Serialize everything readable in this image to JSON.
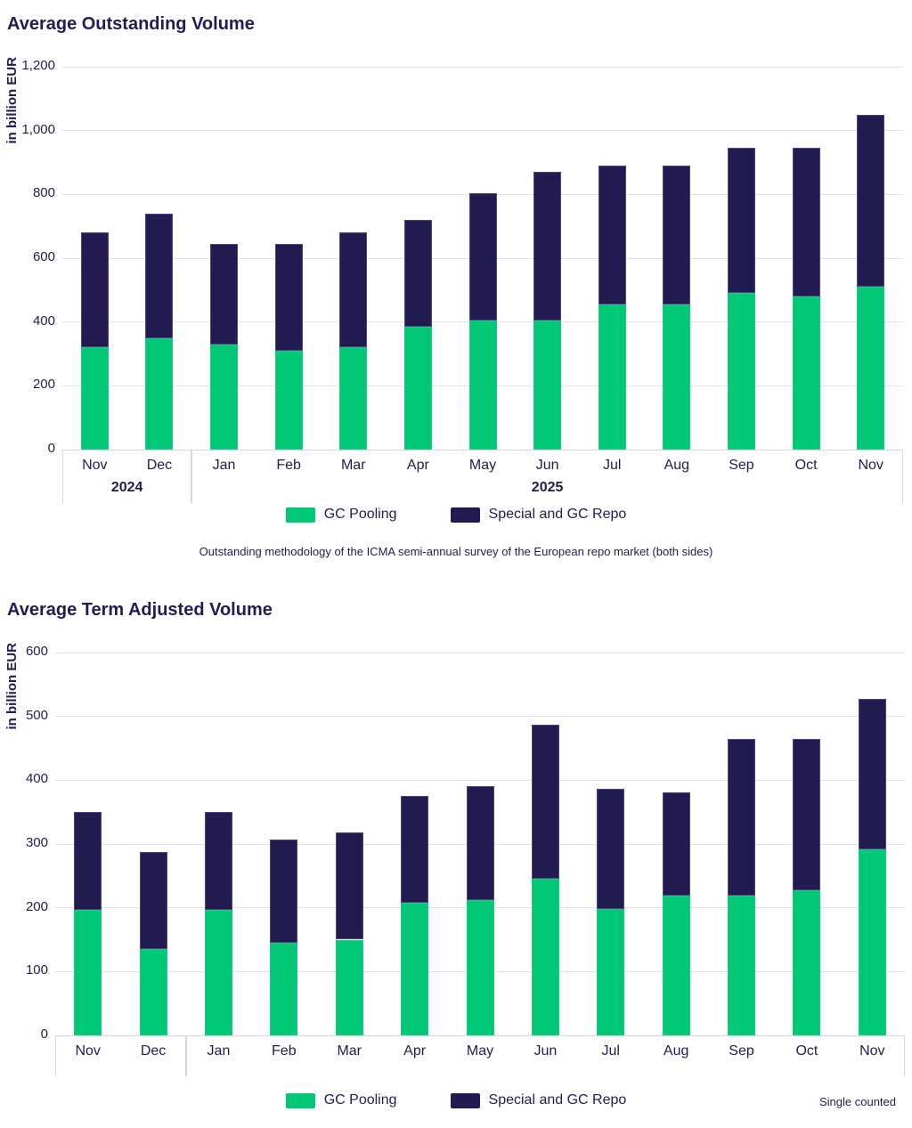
{
  "chart_data": [
    {
      "type": "bar",
      "stacked": true,
      "title": "Average Outstanding Volume",
      "ylabel": "in billion EUR",
      "ylim": [
        0,
        1200
      ],
      "grid": true,
      "legend_position": "bottom-center",
      "ytick_values": [
        0,
        200,
        400,
        600,
        800,
        1000,
        1200
      ],
      "ytick_labels": [
        "0",
        "200",
        "400",
        "600",
        "800",
        "1,000",
        "1,200"
      ],
      "categories": [
        "Nov",
        "Dec",
        "Jan",
        "Feb",
        "Mar",
        "Apr",
        "May",
        "Jun",
        "Jul",
        "Aug",
        "Sep",
        "Oct",
        "Nov"
      ],
      "year_groups": [
        {
          "label": "2024",
          "span": 2
        },
        {
          "label": "2025",
          "span": 11
        }
      ],
      "series": [
        {
          "name": "GC Pooling",
          "color": "#00C877",
          "values": [
            320,
            350,
            330,
            310,
            320,
            385,
            405,
            405,
            455,
            455,
            490,
            480,
            510
          ]
        },
        {
          "name": "Special and GC Repo",
          "color": "#221B4F",
          "values": [
            360,
            390,
            315,
            335,
            360,
            335,
            400,
            465,
            435,
            435,
            455,
            465,
            540
          ]
        }
      ],
      "totals": [
        680,
        740,
        645,
        645,
        680,
        720,
        805,
        870,
        890,
        890,
        945,
        945,
        1050
      ],
      "footnote": "Outstanding methodology of the ICMA semi-annual survey of the European repo market (both sides)"
    },
    {
      "type": "bar",
      "stacked": true,
      "title": "Average Term Adjusted Volume",
      "ylabel": "in billion EUR",
      "ylim": [
        0,
        600
      ],
      "grid": true,
      "legend_position": "bottom-center",
      "ytick_values": [
        0,
        100,
        200,
        300,
        400,
        500,
        600
      ],
      "ytick_labels": [
        "0",
        "100",
        "200",
        "300",
        "400",
        "500",
        "600"
      ],
      "categories": [
        "Nov",
        "Dec",
        "Jan",
        "Feb",
        "Mar",
        "Apr",
        "May",
        "Jun",
        "Jul",
        "Aug",
        "Sep",
        "Oct",
        "Nov"
      ],
      "year_groups": [
        {
          "label": "",
          "span": 2
        },
        {
          "label": "",
          "span": 11
        }
      ],
      "series": [
        {
          "name": "GC Pooling",
          "color": "#00C877",
          "values": [
            197,
            135,
            197,
            145,
            150,
            208,
            212,
            245,
            198,
            219,
            219,
            228,
            292
          ]
        },
        {
          "name": "Special and GC Repo",
          "color": "#221B4F",
          "values": [
            153,
            152,
            153,
            162,
            168,
            168,
            179,
            242,
            188,
            162,
            246,
            237,
            235
          ]
        }
      ],
      "totals": [
        350,
        287,
        350,
        307,
        318,
        376,
        391,
        487,
        386,
        381,
        465,
        465,
        527
      ],
      "note_right": "Single counted"
    }
  ],
  "colors": {
    "text_navy": "#221C52",
    "gc_pooling_green": "#00C877",
    "special_repo_navy": "#221B4F",
    "gridline_gray": "#e3e3e6",
    "axis_box_gray": "#d8d8d8"
  }
}
